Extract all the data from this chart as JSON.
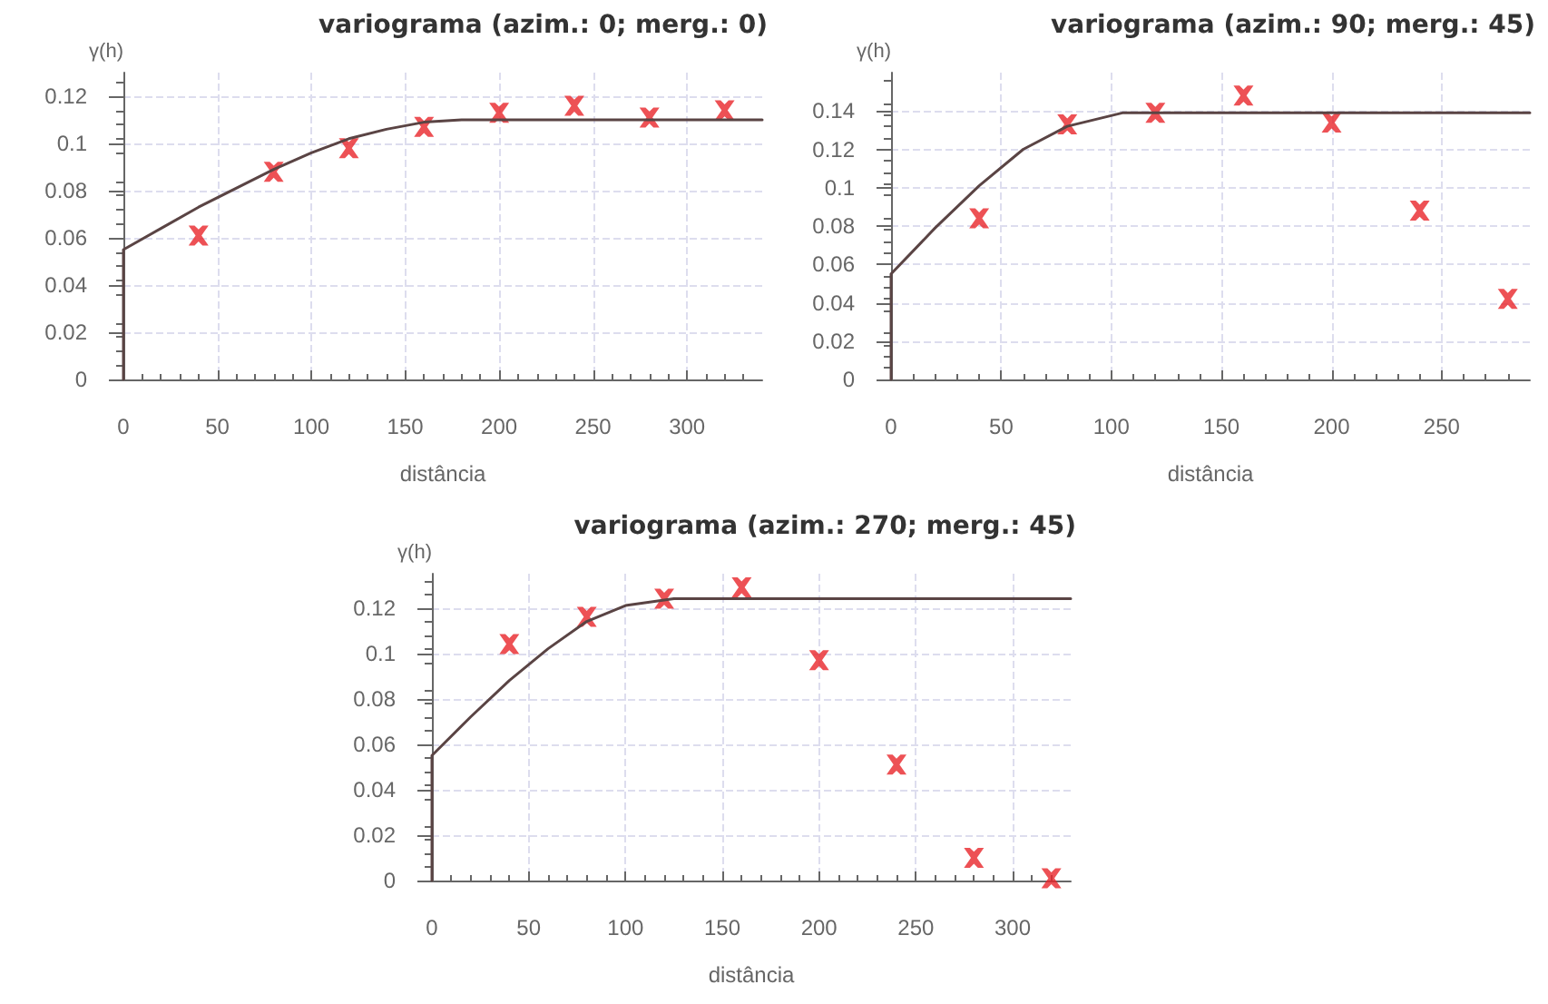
{
  "chart_data": [
    {
      "type": "scatter",
      "title": "variograma (azim.: 0; merg.: 0)",
      "xlabel": "distância",
      "ylabel": "γ(h)",
      "xlim": [
        0,
        340
      ],
      "ylim": [
        0,
        0.13
      ],
      "xticks": [
        0,
        50,
        100,
        150,
        200,
        250,
        300
      ],
      "yticks": [
        0,
        0.02,
        0.04,
        0.06,
        0.08,
        0.1,
        0.12
      ],
      "grid": true,
      "series": [
        {
          "color": "#e8262a",
          "marker": "cross",
          "x": [
            40,
            80,
            120,
            160,
            200,
            240,
            280,
            320
          ],
          "values": [
            0.061,
            0.088,
            0.098,
            0.107,
            0.113,
            0.116,
            0.111,
            0.114
          ]
        },
        {
          "type": "line",
          "color": "#5a4444",
          "marker": "none",
          "line_style": "solid",
          "x": [
            0,
            0,
            20,
            40,
            60,
            80,
            100,
            120,
            140,
            160,
            180,
            340
          ],
          "values": [
            0,
            0.055,
            0.064,
            0.073,
            0.081,
            0.089,
            0.096,
            0.102,
            0.106,
            0.109,
            0.11,
            0.11
          ]
        }
      ]
    },
    {
      "type": "scatter",
      "title": "variograma (azim.: 90; merg.: 45)",
      "xlabel": "distância",
      "ylabel": "γ(h)",
      "xlim": [
        0,
        290
      ],
      "ylim": [
        0,
        0.16
      ],
      "xticks": [
        0,
        50,
        100,
        150,
        200,
        250
      ],
      "yticks": [
        0,
        0.02,
        0.04,
        0.06,
        0.08,
        0.1,
        0.12,
        0.14
      ],
      "grid": true,
      "series": [
        {
          "color": "#e8262a",
          "marker": "cross",
          "x": [
            40,
            80,
            120,
            160,
            200,
            240,
            280
          ],
          "values": [
            0.084,
            0.133,
            0.139,
            0.148,
            0.134,
            0.088,
            0.042
          ]
        },
        {
          "type": "line",
          "color": "#5a4444",
          "marker": "none",
          "line_style": "solid",
          "x": [
            0,
            0,
            20,
            40,
            60,
            80,
            105,
            290
          ],
          "values": [
            0,
            0.055,
            0.079,
            0.101,
            0.12,
            0.132,
            0.139,
            0.139
          ]
        }
      ]
    },
    {
      "type": "scatter",
      "title": "variograma (azim.: 270; merg.: 45)",
      "xlabel": "distância",
      "ylabel": "γ(h)",
      "xlim": [
        0,
        330
      ],
      "ylim": [
        0,
        0.135
      ],
      "xticks": [
        0,
        50,
        100,
        150,
        200,
        250,
        300
      ],
      "yticks": [
        0,
        0.02,
        0.04,
        0.06,
        0.08,
        0.1,
        0.12
      ],
      "grid": true,
      "series": [
        {
          "color": "#e8262a",
          "marker": "cross",
          "x": [
            40,
            80,
            120,
            160,
            200,
            240,
            280,
            320
          ],
          "values": [
            0.104,
            0.116,
            0.124,
            0.129,
            0.097,
            0.051,
            0.01,
            0.001
          ]
        },
        {
          "type": "line",
          "color": "#5a4444",
          "marker": "none",
          "line_style": "solid",
          "x": [
            0,
            0,
            20,
            40,
            60,
            80,
            100,
            125,
            330
          ],
          "values": [
            0,
            0.055,
            0.072,
            0.088,
            0.102,
            0.114,
            0.121,
            0.124,
            0.124
          ]
        }
      ]
    }
  ]
}
